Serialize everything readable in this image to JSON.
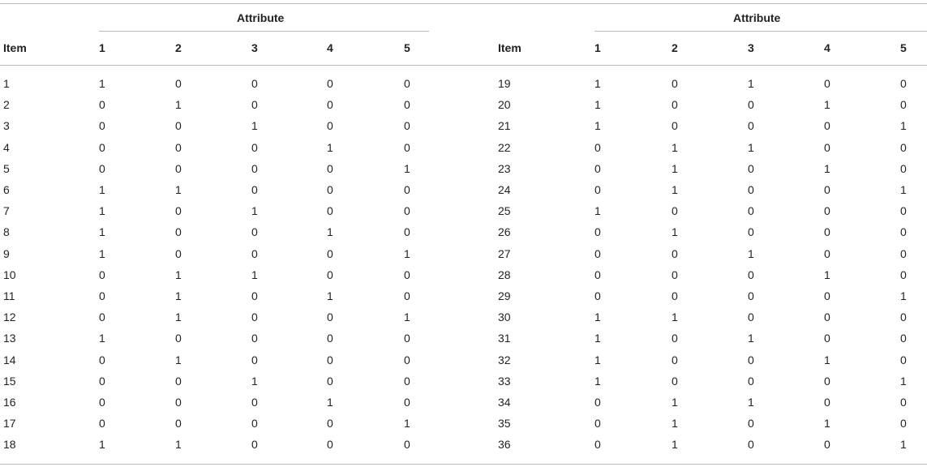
{
  "table": {
    "attribute_label": "Attribute",
    "item_label": "Item",
    "attribute_columns": [
      "1",
      "2",
      "3",
      "4",
      "5"
    ],
    "left_rows": [
      {
        "item": "1",
        "values": [
          "1",
          "0",
          "0",
          "0",
          "0"
        ]
      },
      {
        "item": "2",
        "values": [
          "0",
          "1",
          "0",
          "0",
          "0"
        ]
      },
      {
        "item": "3",
        "values": [
          "0",
          "0",
          "1",
          "0",
          "0"
        ]
      },
      {
        "item": "4",
        "values": [
          "0",
          "0",
          "0",
          "1",
          "0"
        ]
      },
      {
        "item": "5",
        "values": [
          "0",
          "0",
          "0",
          "0",
          "1"
        ]
      },
      {
        "item": "6",
        "values": [
          "1",
          "1",
          "0",
          "0",
          "0"
        ]
      },
      {
        "item": "7",
        "values": [
          "1",
          "0",
          "1",
          "0",
          "0"
        ]
      },
      {
        "item": "8",
        "values": [
          "1",
          "0",
          "0",
          "1",
          "0"
        ]
      },
      {
        "item": "9",
        "values": [
          "1",
          "0",
          "0",
          "0",
          "1"
        ]
      },
      {
        "item": "10",
        "values": [
          "0",
          "1",
          "1",
          "0",
          "0"
        ]
      },
      {
        "item": "11",
        "values": [
          "0",
          "1",
          "0",
          "1",
          "0"
        ]
      },
      {
        "item": "12",
        "values": [
          "0",
          "1",
          "0",
          "0",
          "1"
        ]
      },
      {
        "item": "13",
        "values": [
          "1",
          "0",
          "0",
          "0",
          "0"
        ]
      },
      {
        "item": "14",
        "values": [
          "0",
          "1",
          "0",
          "0",
          "0"
        ]
      },
      {
        "item": "15",
        "values": [
          "0",
          "0",
          "1",
          "0",
          "0"
        ]
      },
      {
        "item": "16",
        "values": [
          "0",
          "0",
          "0",
          "1",
          "0"
        ]
      },
      {
        "item": "17",
        "values": [
          "0",
          "0",
          "0",
          "0",
          "1"
        ]
      },
      {
        "item": "18",
        "values": [
          "1",
          "1",
          "0",
          "0",
          "0"
        ]
      }
    ],
    "right_rows": [
      {
        "item": "19",
        "values": [
          "1",
          "0",
          "1",
          "0",
          "0"
        ]
      },
      {
        "item": "20",
        "values": [
          "1",
          "0",
          "0",
          "1",
          "0"
        ]
      },
      {
        "item": "21",
        "values": [
          "1",
          "0",
          "0",
          "0",
          "1"
        ]
      },
      {
        "item": "22",
        "values": [
          "0",
          "1",
          "1",
          "0",
          "0"
        ]
      },
      {
        "item": "23",
        "values": [
          "0",
          "1",
          "0",
          "1",
          "0"
        ]
      },
      {
        "item": "24",
        "values": [
          "0",
          "1",
          "0",
          "0",
          "1"
        ]
      },
      {
        "item": "25",
        "values": [
          "1",
          "0",
          "0",
          "0",
          "0"
        ]
      },
      {
        "item": "26",
        "values": [
          "0",
          "1",
          "0",
          "0",
          "0"
        ]
      },
      {
        "item": "27",
        "values": [
          "0",
          "0",
          "1",
          "0",
          "0"
        ]
      },
      {
        "item": "28",
        "values": [
          "0",
          "0",
          "0",
          "1",
          "0"
        ]
      },
      {
        "item": "29",
        "values": [
          "0",
          "0",
          "0",
          "0",
          "1"
        ]
      },
      {
        "item": "30",
        "values": [
          "1",
          "1",
          "0",
          "0",
          "0"
        ]
      },
      {
        "item": "31",
        "values": [
          "1",
          "0",
          "1",
          "0",
          "0"
        ]
      },
      {
        "item": "32",
        "values": [
          "1",
          "0",
          "0",
          "1",
          "0"
        ]
      },
      {
        "item": "33",
        "values": [
          "1",
          "0",
          "0",
          "0",
          "1"
        ]
      },
      {
        "item": "34",
        "values": [
          "0",
          "1",
          "1",
          "0",
          "0"
        ]
      },
      {
        "item": "35",
        "values": [
          "0",
          "1",
          "0",
          "1",
          "0"
        ]
      },
      {
        "item": "36",
        "values": [
          "0",
          "1",
          "0",
          "0",
          "1"
        ]
      }
    ]
  }
}
